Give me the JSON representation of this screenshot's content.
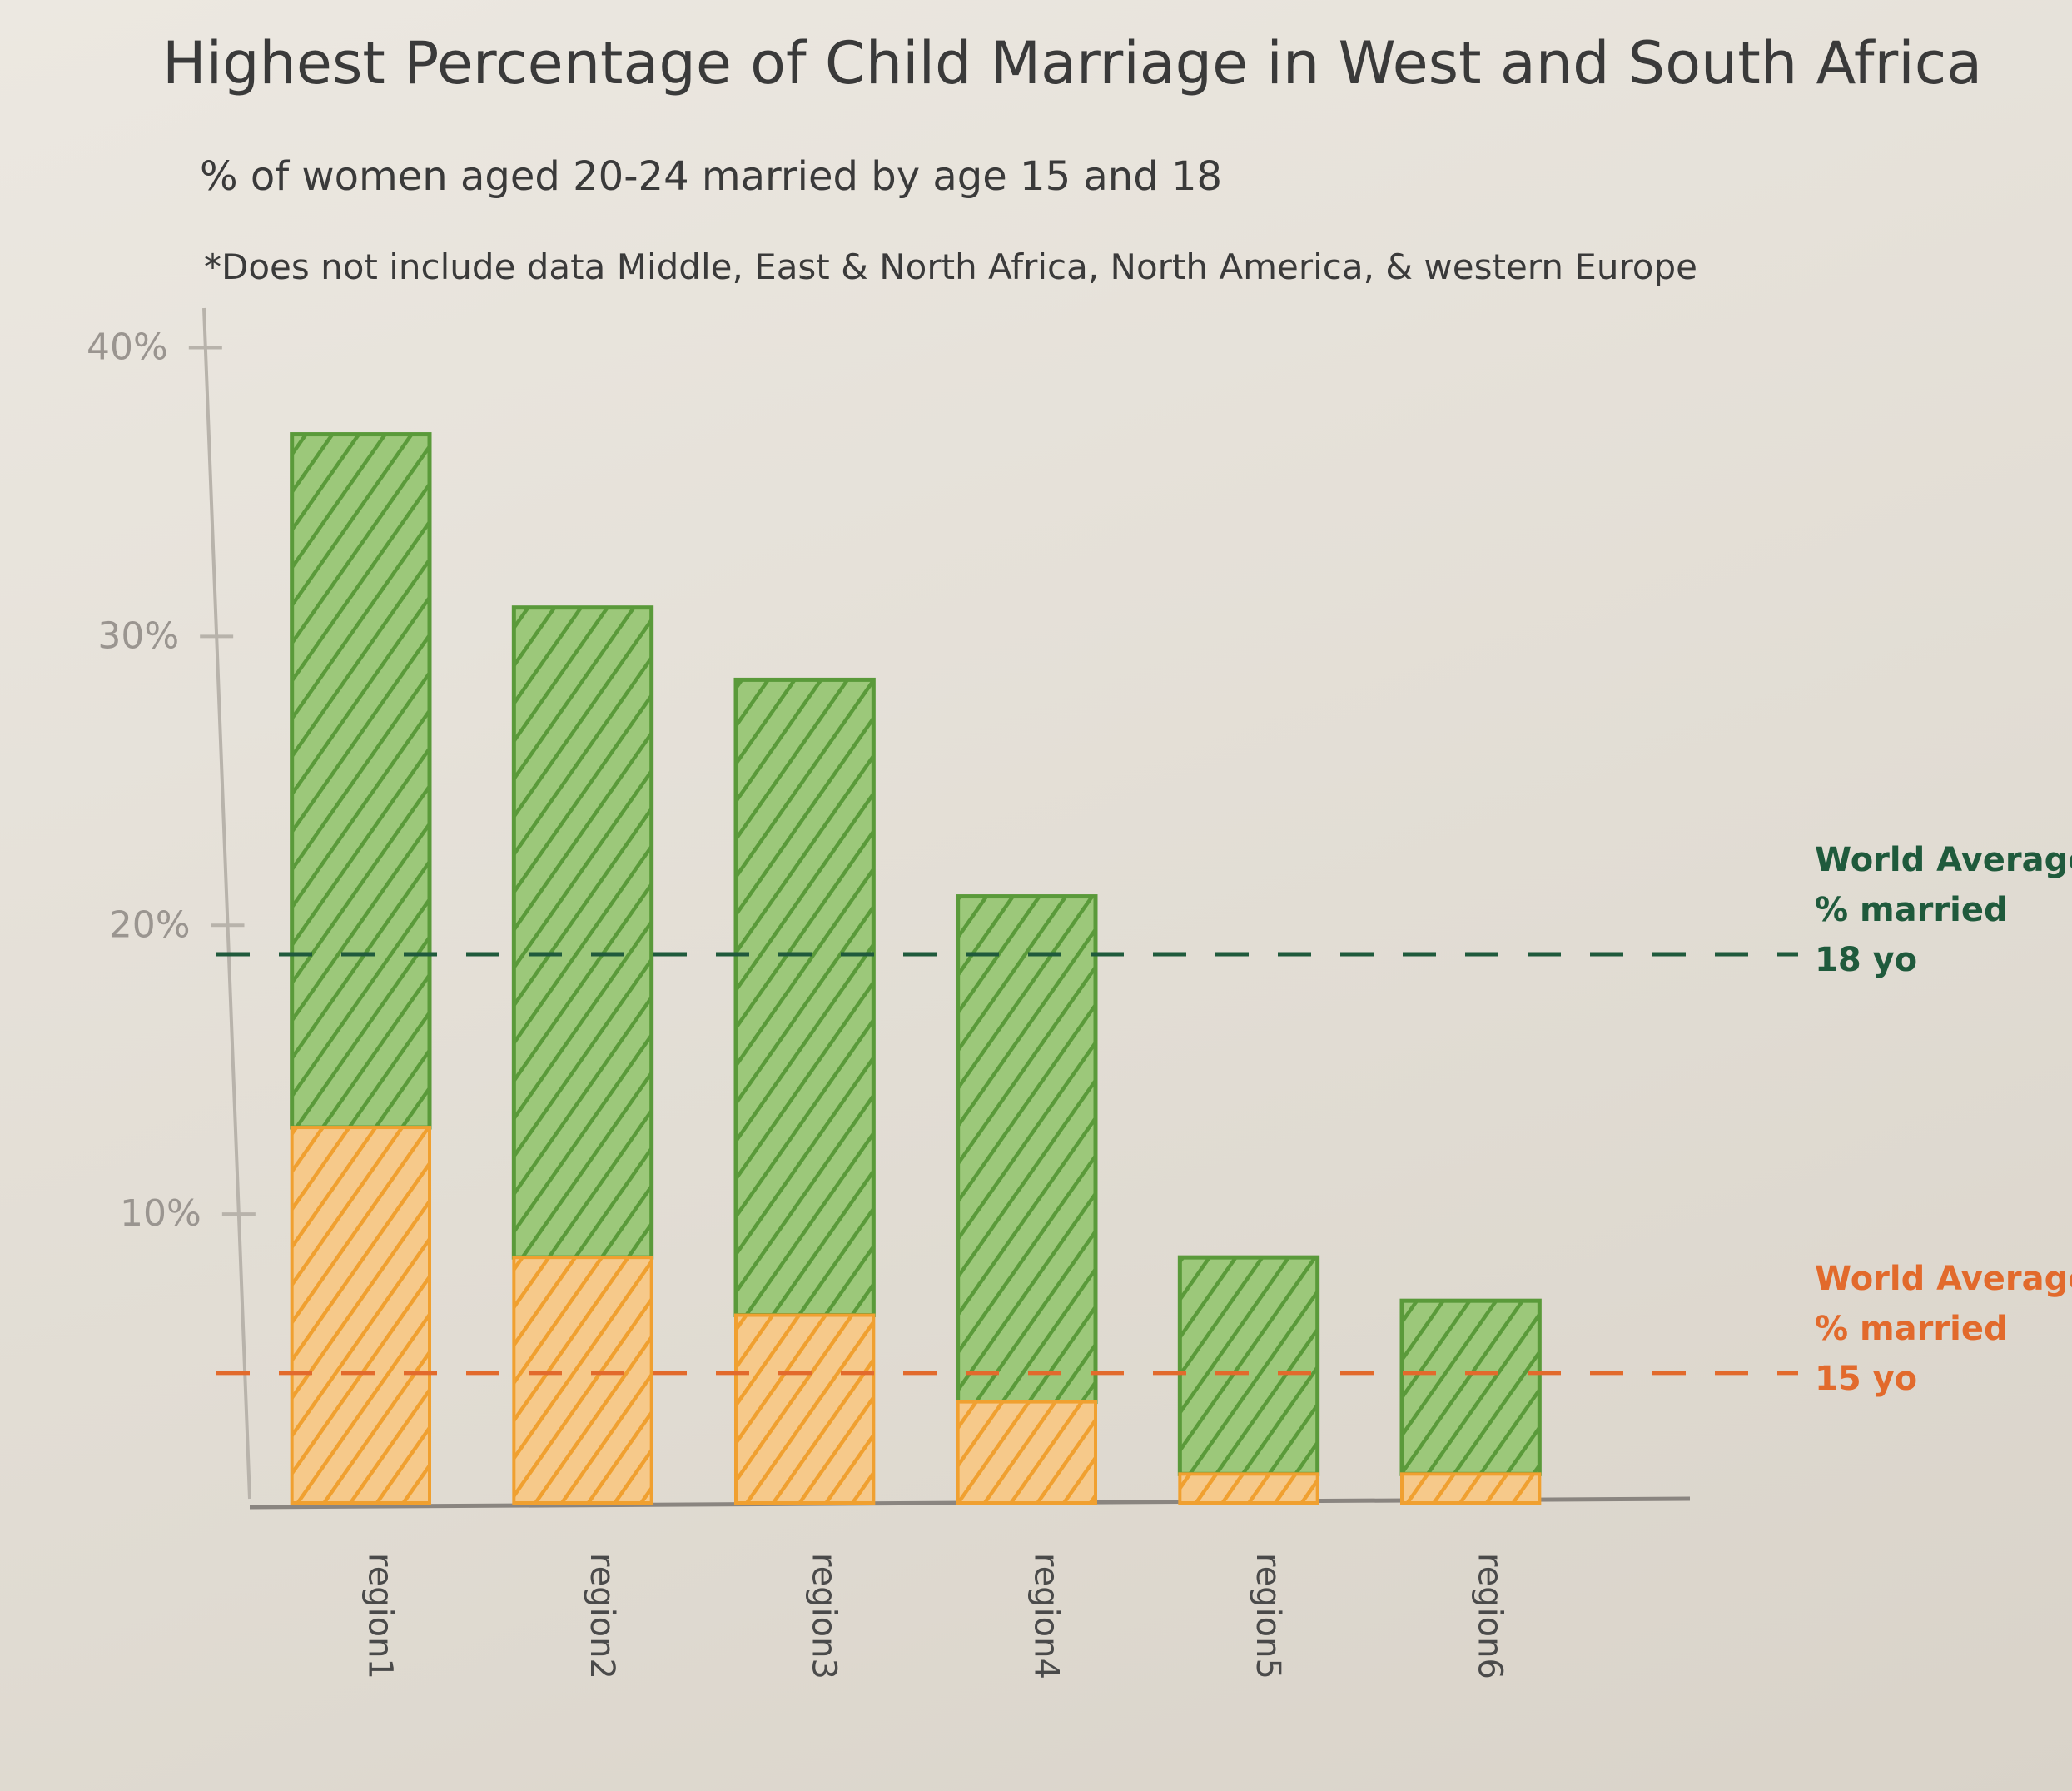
{
  "chart_data": {
    "type": "bar",
    "title": "Highest Percentage of Child Marriage in West and South Africa",
    "subtitle": "% of women aged 20-24 married by age 15 and 18",
    "note": "*Does not include data Middle, East & North Africa, North America, & western Europe",
    "categories": [
      "region1",
      "region2",
      "region3",
      "region4",
      "region5",
      "region6"
    ],
    "series": [
      {
        "values": [
          37,
          31,
          28.5,
          21,
          8.5,
          7
        ],
        "color": "#5a9a3a"
      },
      {
        "values": [
          13,
          8.5,
          6.5,
          3.5,
          1,
          1
        ],
        "color": "#f0a030"
      }
    ],
    "yticks": [
      "10%",
      "20%",
      "30%",
      "40%"
    ],
    "ytick_values": [
      10,
      20,
      30,
      40
    ],
    "ylim": [
      0,
      48
    ],
    "reference_lines": [
      {
        "value": 19,
        "label_lines": [
          "World Average",
          "% married",
          "18 yo"
        ],
        "color": "#1f5a3c"
      },
      {
        "value": 4.5,
        "label_lines": [
          "World Average",
          "% married",
          "15 yo"
        ],
        "color": "#e26a2c"
      }
    ],
    "grid": false
  }
}
